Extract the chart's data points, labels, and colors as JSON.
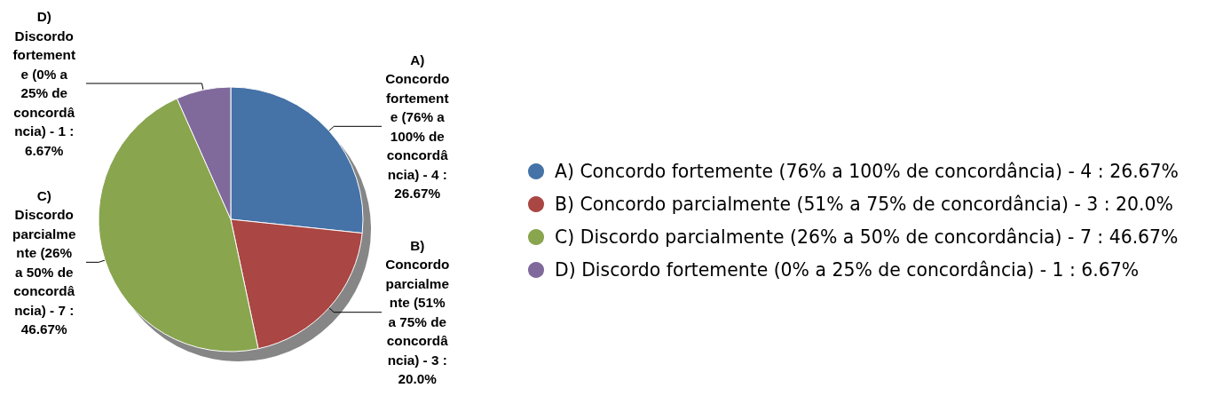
{
  "chart_data": {
    "type": "pie",
    "categories": [
      "A) Concordo fortemente (76% a 100% de concordância)",
      "B) Concordo parcialmente (51% a 75% de concordância)",
      "C) Discordo parcialmente (26% a 50% de concordância)",
      "D) Discordo fortemente (0% a 25% de concordância)"
    ],
    "values": [
      4,
      3,
      7,
      1
    ],
    "value_labels": [
      "4 : 26.67%",
      "3 : 20.0%",
      "7 : 46.67%",
      "1 : 6.67%"
    ],
    "colors": [
      "#4572a7",
      "#aa4643",
      "#89a54e",
      "#80699b"
    ],
    "legend": "right"
  }
}
